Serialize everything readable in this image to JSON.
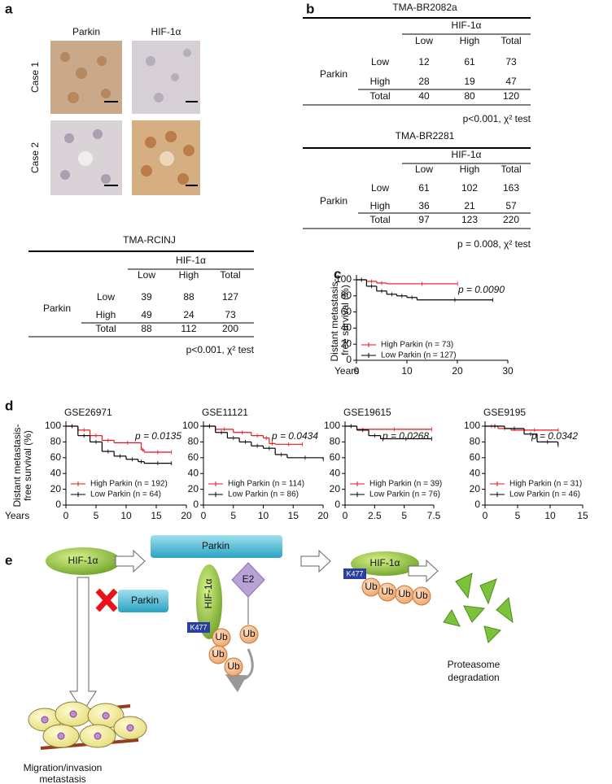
{
  "panel_labels": [
    "a",
    "b",
    "c",
    "d",
    "e"
  ],
  "panel_a": {
    "columns": [
      "Parkin",
      "HIF-1α"
    ],
    "rows": [
      "Case 1",
      "Case 2"
    ]
  },
  "tables": [
    {
      "title": "TMA-RCINJ",
      "column_group": "HIF-1α",
      "columns": [
        "Low",
        "High",
        "Total"
      ],
      "row_group": "Parkin",
      "rows": [
        {
          "label": "Low",
          "values": [
            39,
            88,
            127
          ]
        },
        {
          "label": "High",
          "values": [
            49,
            24,
            73
          ]
        },
        {
          "label": "Total",
          "values": [
            88,
            112,
            200
          ]
        }
      ],
      "footnote": "p<0.001, χ² test"
    },
    {
      "title": "TMA-BR2082a",
      "column_group": "HIF-1α",
      "columns": [
        "Low",
        "High",
        "Total"
      ],
      "row_group": "Parkin",
      "rows": [
        {
          "label": "Low",
          "values": [
            12,
            61,
            73
          ]
        },
        {
          "label": "High",
          "values": [
            28,
            19,
            47
          ]
        },
        {
          "label": "Total",
          "values": [
            40,
            80,
            120
          ]
        }
      ],
      "footnote": "p<0.001, χ² test"
    },
    {
      "title": "TMA-BR2281",
      "column_group": "HIF-1α",
      "columns": [
        "Low",
        "High",
        "Total"
      ],
      "row_group": "Parkin",
      "rows": [
        {
          "label": "Low",
          "values": [
            61,
            102,
            163
          ]
        },
        {
          "label": "High",
          "values": [
            36,
            21,
            57
          ]
        },
        {
          "label": "Total",
          "values": [
            97,
            123,
            220
          ]
        }
      ],
      "footnote": "p = 0.008, χ² test"
    }
  ],
  "chart_data": [
    {
      "type": "survival",
      "ylabel": [
        "Distant metastasis-",
        "free survival (%)"
      ],
      "xlabel": "Years",
      "annotation": "p = 0.0090",
      "xlim": [
        0,
        30
      ],
      "xticks": [
        0,
        10,
        20,
        30
      ],
      "ylim": [
        0,
        100
      ],
      "yticks": [
        0,
        20,
        40,
        60,
        80,
        100
      ],
      "series": [
        {
          "name": "High Parkin (n = 73)",
          "color": "#e8141b",
          "x": [
            0,
            2,
            4,
            6,
            20
          ],
          "values": [
            100,
            98,
            96,
            95,
            95
          ]
        },
        {
          "name": "Low Parkin (n = 127)",
          "color": "#000000",
          "x": [
            0,
            2,
            4,
            6,
            8,
            10,
            12,
            27
          ],
          "values": [
            100,
            92,
            86,
            82,
            80,
            78,
            75,
            75
          ]
        }
      ]
    },
    {
      "type": "survival",
      "title": "GSE26971",
      "ylabel": [
        "Distant metastasis-",
        "free survival (%)"
      ],
      "xlabel": "Years",
      "annotation": "p = 0.0135",
      "xlim": [
        0,
        20
      ],
      "xticks": [
        0,
        5,
        10,
        15,
        20
      ],
      "ylim": [
        0,
        100
      ],
      "yticks": [
        0,
        20,
        40,
        60,
        80,
        100
      ],
      "series": [
        {
          "name": "High Parkin (n = 192)",
          "color": "#e8141b",
          "x": [
            0,
            2,
            4,
            6,
            8,
            12.5,
            13,
            17.5
          ],
          "values": [
            100,
            95,
            88,
            82,
            79,
            70,
            67,
            67
          ]
        },
        {
          "name": "Low Parkin  (n = 64)",
          "color": "#000000",
          "x": [
            0,
            2,
            4,
            6,
            8,
            10,
            12,
            13,
            17.5
          ],
          "values": [
            100,
            88,
            80,
            68,
            62,
            58,
            55,
            53,
            53
          ]
        }
      ]
    },
    {
      "type": "survival",
      "title": "GSE11121",
      "annotation": "p = 0.0434",
      "xlim": [
        0,
        20
      ],
      "xticks": [
        0,
        5,
        10,
        15,
        20
      ],
      "ylim": [
        0,
        100
      ],
      "yticks": [
        0,
        20,
        40,
        60,
        80,
        100
      ],
      "series": [
        {
          "name": "High Parkin (n = 114)",
          "color": "#e8141b",
          "x": [
            0,
            2,
            5,
            8,
            10,
            11,
            12,
            16.5
          ],
          "values": [
            100,
            96,
            92,
            88,
            85,
            78,
            77,
            77
          ]
        },
        {
          "name": "Low Parkin  (n = 86)",
          "color": "#000000",
          "x": [
            0,
            2,
            4,
            6,
            8,
            10,
            12,
            14,
            20
          ],
          "values": [
            100,
            92,
            85,
            80,
            75,
            72,
            64,
            60,
            58
          ]
        }
      ]
    },
    {
      "type": "survival",
      "title": "GSE19615",
      "annotation": "p = 0.0268",
      "xlim": [
        0,
        7.5
      ],
      "xticks": [
        0,
        2.5,
        5,
        7.5
      ],
      "ylim": [
        0,
        100
      ],
      "yticks": [
        0,
        20,
        40,
        60,
        80,
        100
      ],
      "series": [
        {
          "name": "High Parkin (n = 39)",
          "color": "#e8141b",
          "x": [
            0,
            1,
            7.3
          ],
          "values": [
            100,
            96,
            96
          ]
        },
        {
          "name": "Low Parkin  (n = 76)",
          "color": "#000000",
          "x": [
            0,
            1,
            2,
            3,
            7.3
          ],
          "values": [
            100,
            95,
            88,
            84,
            84
          ]
        }
      ]
    },
    {
      "type": "survival",
      "title": "GSE9195",
      "annotation": "p = 0.0342",
      "xlim": [
        0,
        15
      ],
      "xticks": [
        0,
        5,
        10,
        15
      ],
      "ylim": [
        0,
        100
      ],
      "yticks": [
        0,
        20,
        40,
        60,
        80,
        100
      ],
      "series": [
        {
          "name": "High Parkin (n = 31)",
          "color": "#e8141b",
          "x": [
            0,
            2,
            4,
            11.2
          ],
          "values": [
            100,
            97,
            95,
            95
          ]
        },
        {
          "name": "Low Parkin  (n = 46)",
          "color": "#000000",
          "x": [
            0,
            3,
            6,
            8,
            11.2
          ],
          "values": [
            100,
            97,
            90,
            80,
            76
          ]
        }
      ]
    }
  ],
  "diagram": {
    "hif": "HIF-1α",
    "parkin": "Parkin",
    "e2": "E2",
    "k477": "K477",
    "ub": "Ub",
    "proteasome": [
      "Proteasome",
      "degradation"
    ],
    "migration": [
      "Migration/invasion",
      "metastasis"
    ]
  }
}
